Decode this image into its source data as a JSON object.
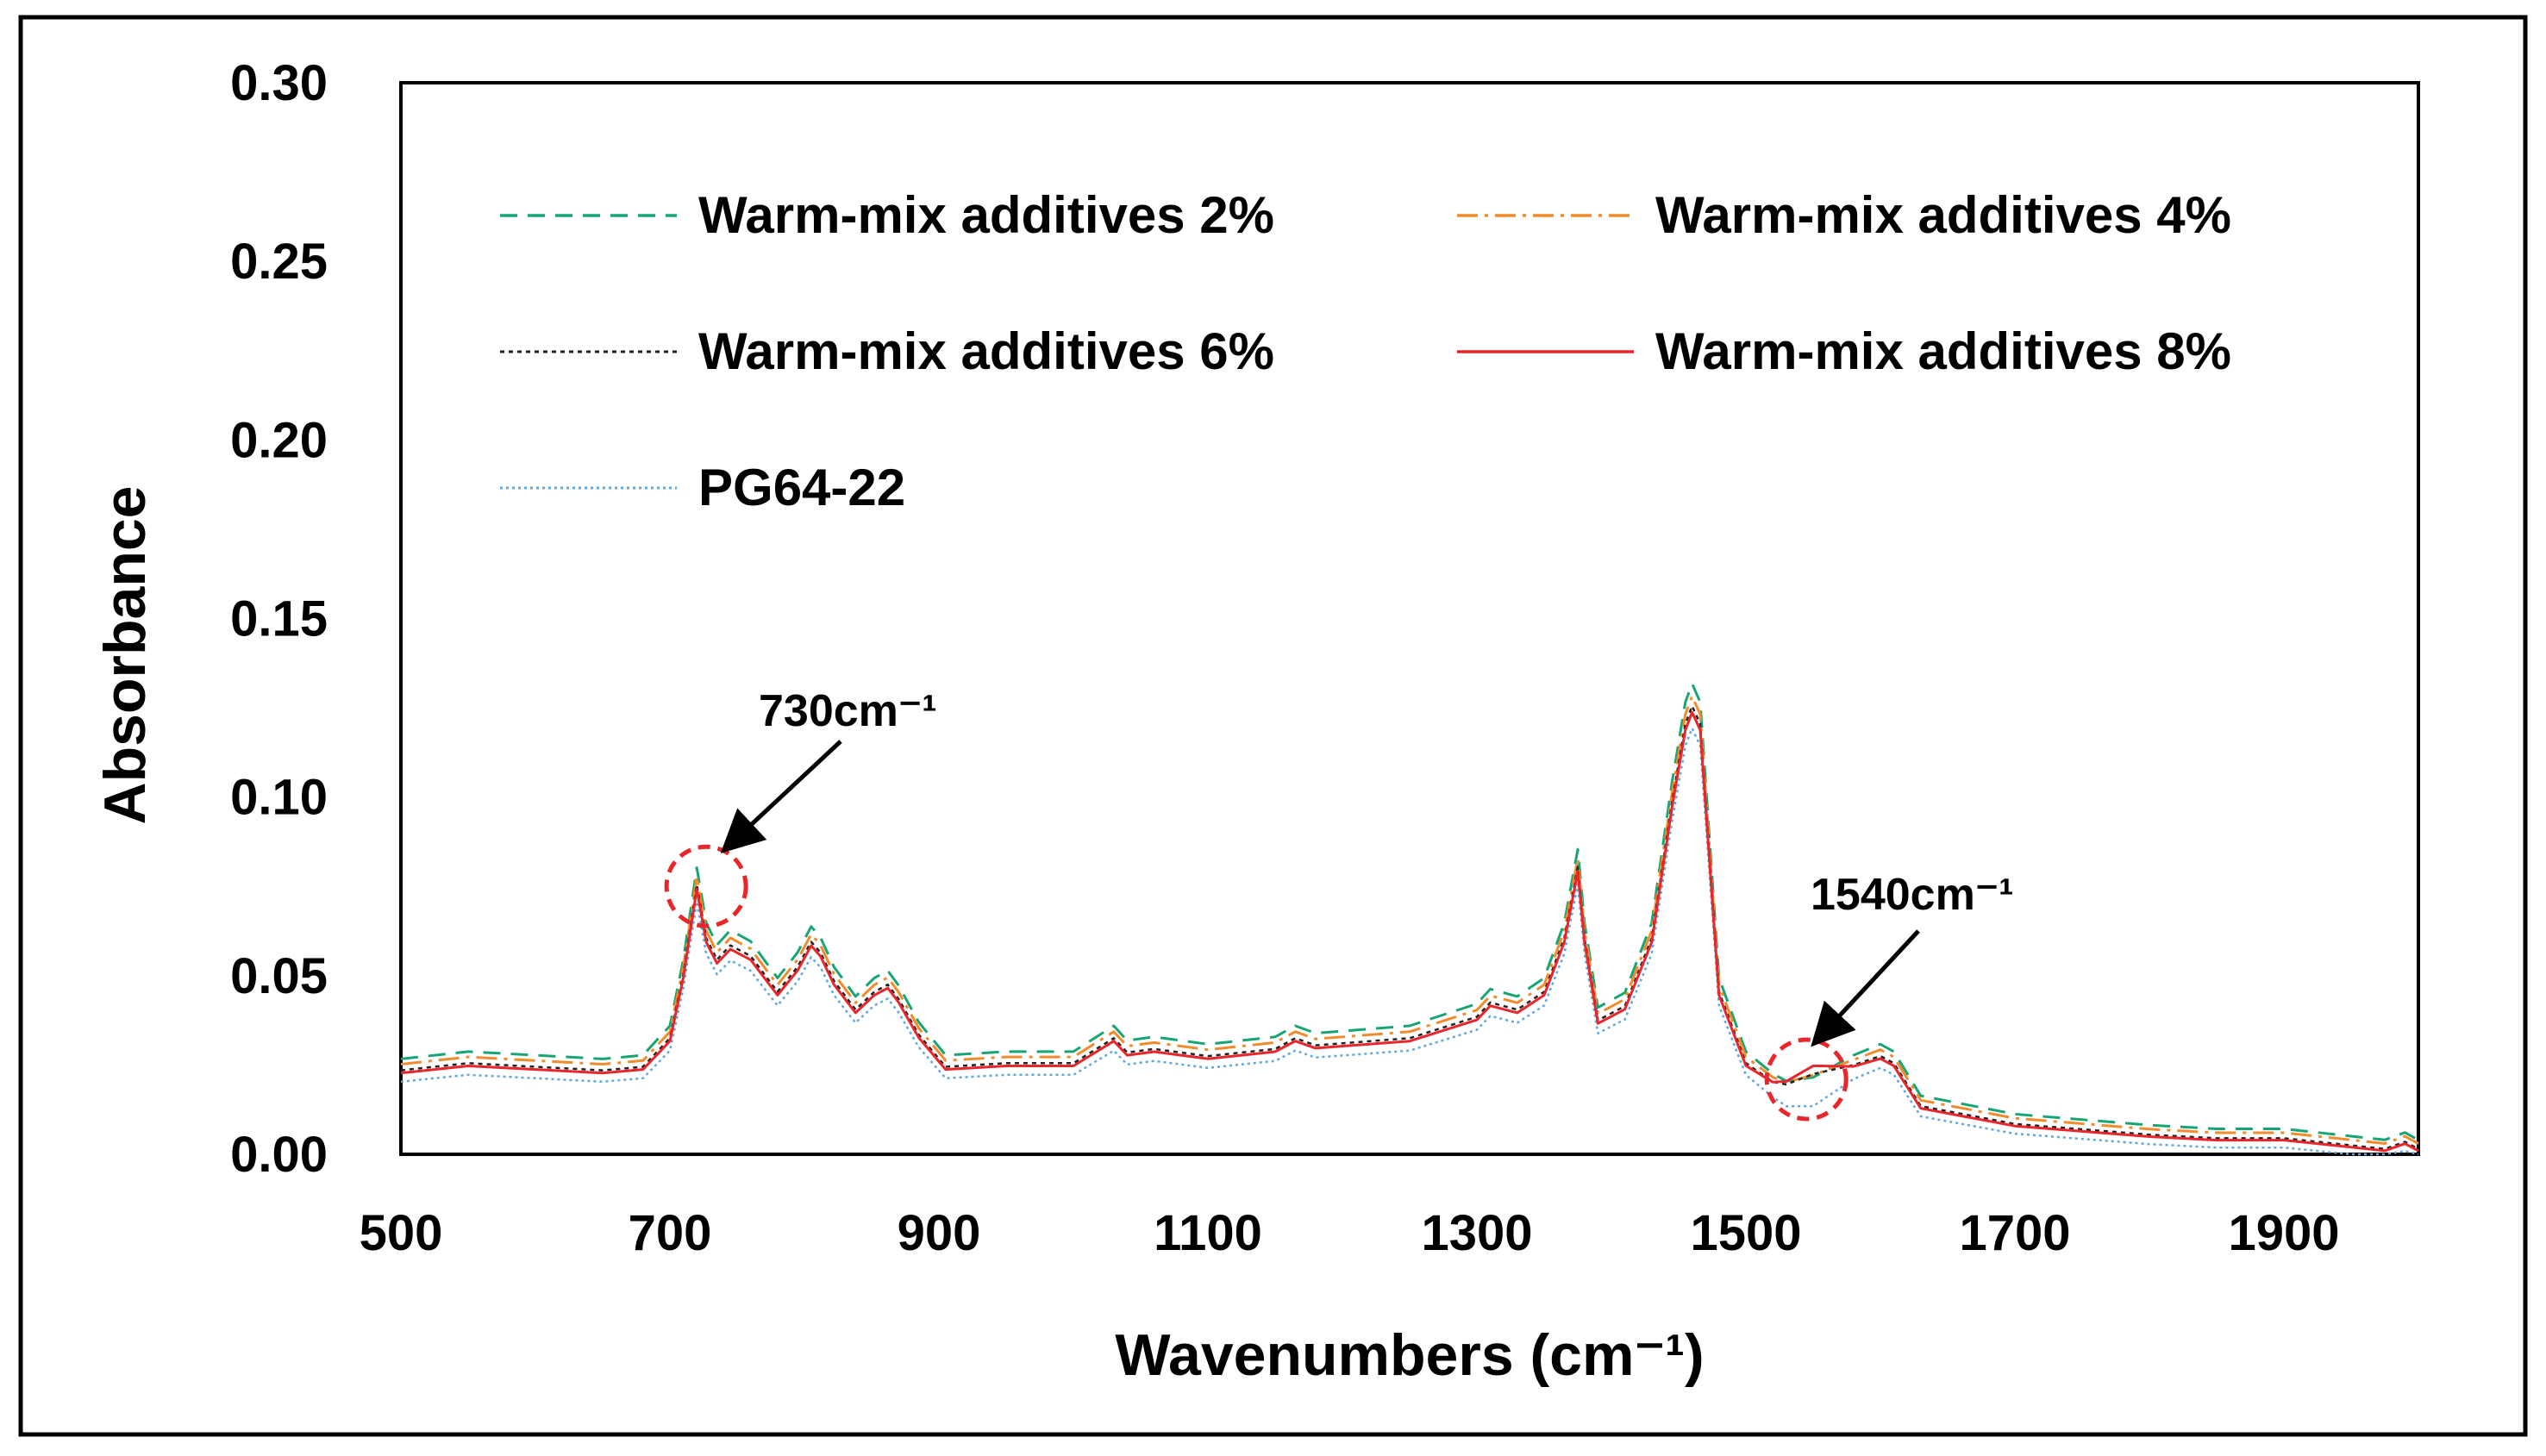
{
  "chart_data": {
    "type": "line",
    "title": "",
    "xlabel": "Wavenumbers (cm⁻¹)",
    "ylabel": "Absorbance",
    "xlim": [
      500,
      2000
    ],
    "ylim": [
      0,
      0.3
    ],
    "xticks": [
      500,
      700,
      900,
      1100,
      1300,
      1500,
      1700,
      1900
    ],
    "yticks": [
      0.0,
      0.05,
      0.1,
      0.15,
      0.2,
      0.25,
      0.3
    ],
    "xtick_labels": [
      "500",
      "700",
      "900",
      "1100",
      "1300",
      "1500",
      "1700",
      "1900"
    ],
    "ytick_labels": [
      "0.00",
      "0.05",
      "0.10",
      "0.15",
      "0.20",
      "0.25",
      "0.30"
    ],
    "grid": false,
    "legend_position": "top-left",
    "base_spectrum": {
      "x": [
        500,
        550,
        600,
        650,
        680,
        700,
        710,
        720,
        727,
        735,
        745,
        760,
        780,
        795,
        805,
        812,
        822,
        838,
        852,
        862,
        870,
        885,
        905,
        950,
        1000,
        1030,
        1040,
        1060,
        1100,
        1150,
        1165,
        1180,
        1250,
        1300,
        1310,
        1330,
        1350,
        1365,
        1375,
        1380,
        1390,
        1410,
        1430,
        1445,
        1455,
        1460,
        1466,
        1480,
        1500,
        1520,
        1530,
        1550,
        1580,
        1600,
        1610,
        1630,
        1700,
        1800,
        1850,
        1900,
        1950,
        1975,
        1990,
        2000
      ],
      "y": [
        0.023,
        0.025,
        0.024,
        0.023,
        0.024,
        0.032,
        0.05,
        0.075,
        0.06,
        0.054,
        0.058,
        0.055,
        0.045,
        0.052,
        0.059,
        0.056,
        0.048,
        0.04,
        0.045,
        0.047,
        0.043,
        0.033,
        0.024,
        0.025,
        0.025,
        0.032,
        0.028,
        0.029,
        0.027,
        0.029,
        0.032,
        0.03,
        0.032,
        0.038,
        0.042,
        0.04,
        0.045,
        0.06,
        0.08,
        0.06,
        0.037,
        0.041,
        0.06,
        0.098,
        0.12,
        0.125,
        0.12,
        0.045,
        0.025,
        0.019,
        0.017,
        0.018,
        0.024,
        0.027,
        0.025,
        0.013,
        0.008,
        0.005,
        0.004,
        0.004,
        0.002,
        0.001,
        0.003,
        0.001
      ]
    },
    "series": [
      {
        "name": "Warm-mix additives 2%",
        "color": "#17a673",
        "dash": "20 12",
        "width": 3,
        "offset": 0.003,
        "scale": 1.03,
        "bump": 0.0
      },
      {
        "name": "Warm-mix additives 4%",
        "color": "#f28b2c",
        "dash": "24 8 4 8",
        "width": 3,
        "offset": 0.002,
        "scale": 1.01,
        "bump": 0.002
      },
      {
        "name": "Warm-mix additives 6%",
        "color": "#222222",
        "dash": "5 5",
        "width": 2.5,
        "offset": 0.0005,
        "scale": 1.0,
        "bump": 0.004
      },
      {
        "name": "Warm-mix additives 8%",
        "color": "#e8262b",
        "dash": "",
        "width": 3,
        "offset": 0.0,
        "scale": 0.99,
        "bump": 0.007
      },
      {
        "name": "PG64-22",
        "color": "#5fa8e0",
        "dash": "3 4",
        "width": 2.5,
        "offset": -0.002,
        "scale": 0.97,
        "bump": -0.002
      }
    ],
    "annotations": [
      {
        "text": "730cm⁻¹",
        "x": 727,
        "y": 0.075
      },
      {
        "text": "1540cm⁻¹",
        "x": 1545,
        "y": 0.021
      }
    ]
  }
}
